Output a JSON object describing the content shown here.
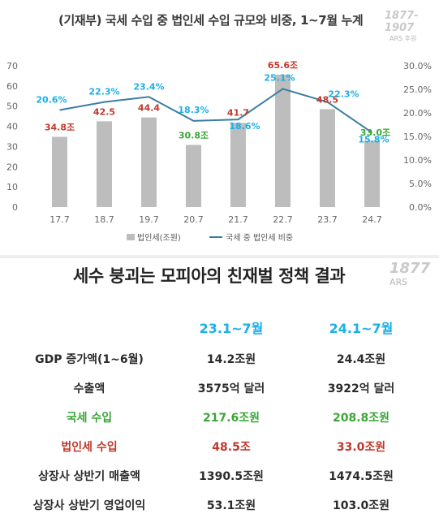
{
  "top_panel": {
    "title": "(기재부) 국세 수입 중 법인세 수입 규모와 비중, 1~7월 누계",
    "logo_main": "1877-1907",
    "logo_sub": "ARS 후원"
  },
  "chart_data": {
    "type": "bar",
    "categories": [
      "17.7",
      "18.7",
      "19.7",
      "20.7",
      "21.7",
      "22.7",
      "23.7",
      "24.7"
    ],
    "series": [
      {
        "name": "법인세(조원)",
        "type": "bar",
        "axis": "left",
        "values": [
          34.8,
          42.5,
          44.4,
          30.8,
          41.7,
          65.6,
          48.5,
          33.0
        ],
        "color": "#bdbdbd",
        "data_labels": [
          "34.8조",
          "42.5",
          "44.4",
          "30.8조",
          "41.7",
          "65.6조",
          "48.5",
          "33.0조"
        ],
        "label_colors": [
          "#c0392b",
          "#c0392b",
          "#c0392b",
          "#3aa637",
          "#c0392b",
          "#c0392b",
          "#c0392b",
          "#3aa637"
        ]
      },
      {
        "name": "국세 중 법인세 비중",
        "type": "line",
        "axis": "right",
        "values": [
          20.6,
          22.3,
          23.4,
          18.3,
          18.6,
          25.1,
          22.3,
          15.8
        ],
        "color": "#3b7ea1",
        "data_labels": [
          "20.6%",
          "22.3%",
          "23.4%",
          "18.3%",
          "18.6%",
          "25.1%",
          "22.3%",
          "15.8%"
        ],
        "label_color": "#1ab0e8"
      }
    ],
    "ylim": [
      0,
      70
    ],
    "y_ticks": [
      "0",
      "10",
      "20",
      "30",
      "40",
      "50",
      "60",
      "70"
    ],
    "y2lim": [
      0,
      30
    ],
    "y2_ticks": [
      "0.0%",
      "5.0%",
      "10.0%",
      "15.0%",
      "20.0%",
      "25.0%",
      "30.0%"
    ],
    "grid": false,
    "legend": "bottom"
  },
  "bottom_panel": {
    "title": "세수 붕괴는 모피아의 친재벌 정책 결과",
    "logo_main": "1877",
    "logo_sub": "ARS",
    "table": {
      "headers": [
        "23.1~7월",
        "24.1~7월"
      ],
      "header_color": "#1ab0e8",
      "rows": [
        {
          "label": "GDP 증가액(1~6월)",
          "a": "14.2조원",
          "b": "24.4조원",
          "color": "#2b2b2b"
        },
        {
          "label": "수출액",
          "a": "3575억 달러",
          "b": "3922억 달러",
          "color": "#2b2b2b"
        },
        {
          "label": "국세 수입",
          "a": "217.6조원",
          "b": "208.8조원",
          "color": "#3aa637"
        },
        {
          "label": "법인세 수입",
          "a": "48.5조",
          "b": "33.0조원",
          "color": "#c0392b"
        },
        {
          "label": "상장사 상반기 매출액",
          "a": "1390.5조원",
          "b": "1474.5조원",
          "color": "#2b2b2b"
        },
        {
          "label": "상장사 상반기 영업이익",
          "a": "53.1조원",
          "b": "103.0조원",
          "color": "#2b2b2b"
        }
      ]
    }
  }
}
